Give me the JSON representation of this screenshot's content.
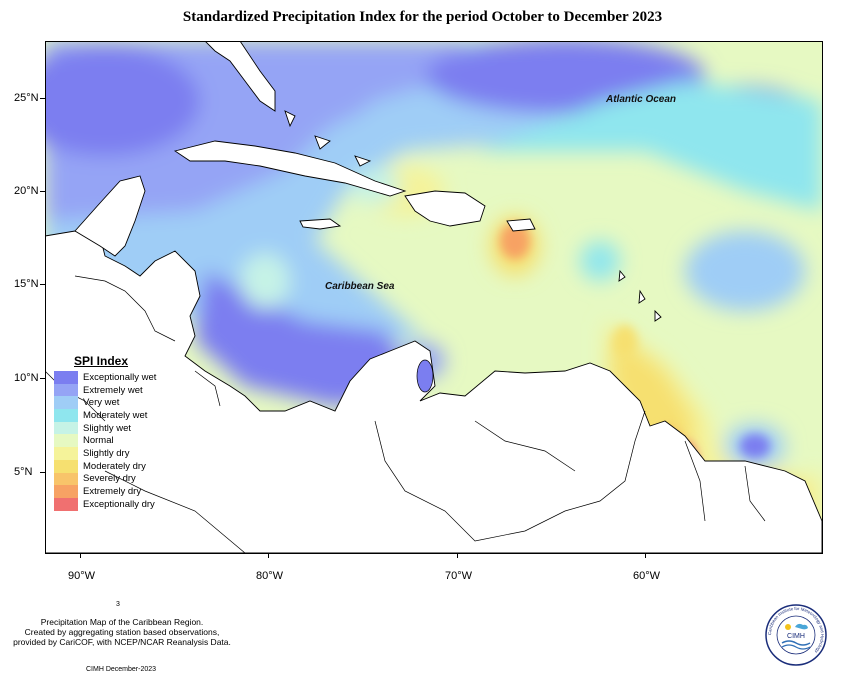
{
  "title": "Standardized Precipitation Index for the period October to December 2023",
  "map_labels": {
    "atlantic": "Atlantic Ocean",
    "caribbean": "Caribbean Sea"
  },
  "axes": {
    "latitude": [
      "25°N",
      "20°N",
      "15°N",
      "10°N",
      "5°N"
    ],
    "longitude": [
      "90°W",
      "80°W",
      "70°W",
      "60°W"
    ]
  },
  "legend": {
    "title": "SPI Index",
    "items": [
      {
        "label": "Exceptionally wet",
        "color": "#7b7ef0"
      },
      {
        "label": "Extremely wet",
        "color": "#95a4f5"
      },
      {
        "label": "Very wet",
        "color": "#9fcdf6"
      },
      {
        "label": "Moderately wet",
        "color": "#8fe6ee"
      },
      {
        "label": "Slightly wet",
        "color": "#c6f3e6"
      },
      {
        "label": "Normal",
        "color": "#e6f9c2"
      },
      {
        "label": "Slightly dry",
        "color": "#f5f39a"
      },
      {
        "label": "Moderately dry",
        "color": "#f6e070"
      },
      {
        "label": "Severely dry",
        "color": "#f8c46a"
      },
      {
        "label": "Extremely dry",
        "color": "#f7a264"
      },
      {
        "label": "Exceptionally dry",
        "color": "#f07070"
      }
    ]
  },
  "notes": {
    "line1": "Precipitation Map of the Caribbean Region.",
    "line2": "Created by aggregating station based observations,",
    "line3": "provided by CariCOF, with NCEP/NCAR Reanalysis Data.",
    "credit": "CIMH December-2023",
    "mark": "3"
  },
  "logo": {
    "ring_text": "Caribbean Institute for Meteorology and Hydrology",
    "abbr": "CIMH"
  }
}
